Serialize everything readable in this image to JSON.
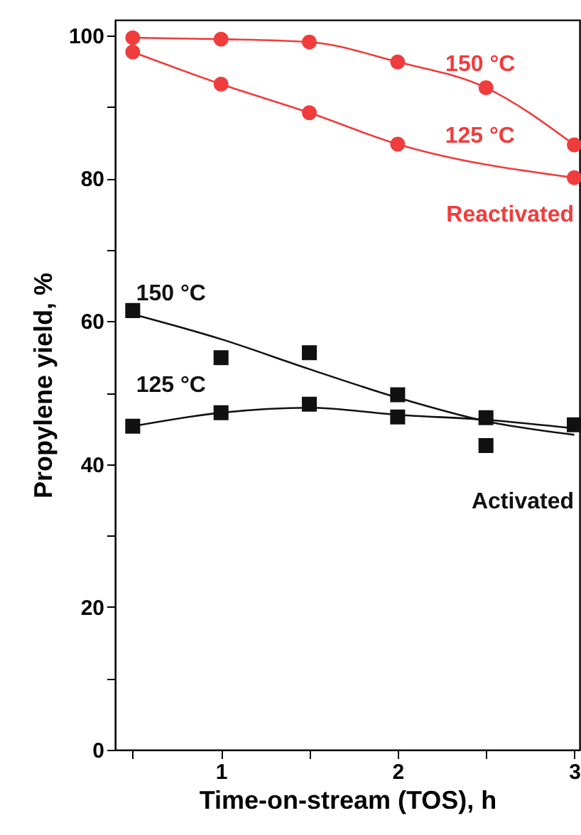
{
  "chart_data": {
    "type": "scatter",
    "xlabel": "Time-on-stream (TOS), h",
    "ylabel": "Propylene yield, %",
    "xlim": [
      0.4,
      3.03
    ],
    "xticks": [
      {
        "value": 0.5,
        "label": null
      },
      1,
      {
        "value": 1.5,
        "label": null
      },
      2,
      {
        "value": 2.5,
        "label": null
      },
      3
    ],
    "ylim": [
      0,
      102.2
    ],
    "yticks": [
      0,
      {
        "value": 10,
        "label": null
      },
      20,
      {
        "value": 30,
        "label": null
      },
      40,
      {
        "value": 50,
        "label": null
      },
      60,
      {
        "value": 70,
        "label": null
      },
      80,
      {
        "value": 90,
        "label": null
      },
      100
    ],
    "series": [
      {
        "name": "150 °C",
        "type": "line",
        "marker": "circle",
        "color": "#f03c3c",
        "x": [
          0.5,
          1,
          1.5,
          2,
          2.5,
          3
        ],
        "values": [
          99.7,
          99.5,
          99.1,
          96.3,
          92.7,
          84.7
        ]
      },
      {
        "name": "125 °C",
        "type": "line",
        "marker": "circle",
        "color": "#f03c3c",
        "x": [
          0.5,
          1,
          1.5,
          2,
          3
        ],
        "values": [
          97.7,
          93.2,
          89.2,
          84.8,
          80.1
        ]
      },
      {
        "name": "150 °C",
        "marker": "square",
        "color": "#111111",
        "x": [
          0.5,
          1,
          1.5,
          2,
          2.5,
          3
        ],
        "values": [
          61.5,
          54.9,
          55.6,
          49.7,
          42.6,
          45.5
        ]
      },
      {
        "name": "125 °C",
        "marker": "square",
        "color": "#111111",
        "x": [
          0.5,
          1,
          1.5,
          2,
          2.5
        ],
        "values": [
          45.3,
          47.2,
          48.4,
          46.6,
          46.5
        ]
      },
      {
        "type": "line",
        "marker": "none",
        "color": "#111111",
        "x": [
          0.5,
          1,
          1.5,
          2,
          2.5,
          3
        ],
        "values": [
          61.0,
          57.5,
          53.3,
          49.3,
          46.0,
          44.1
        ]
      },
      {
        "type": "line",
        "marker": "none",
        "color": "#111111",
        "x": [
          0.5,
          1,
          1.5,
          2,
          2.5,
          3
        ],
        "values": [
          45.3,
          47.2,
          47.9,
          46.9,
          46.2,
          45.0
        ]
      }
    ],
    "annotations": [
      "Reactivated",
      "Activated"
    ]
  }
}
